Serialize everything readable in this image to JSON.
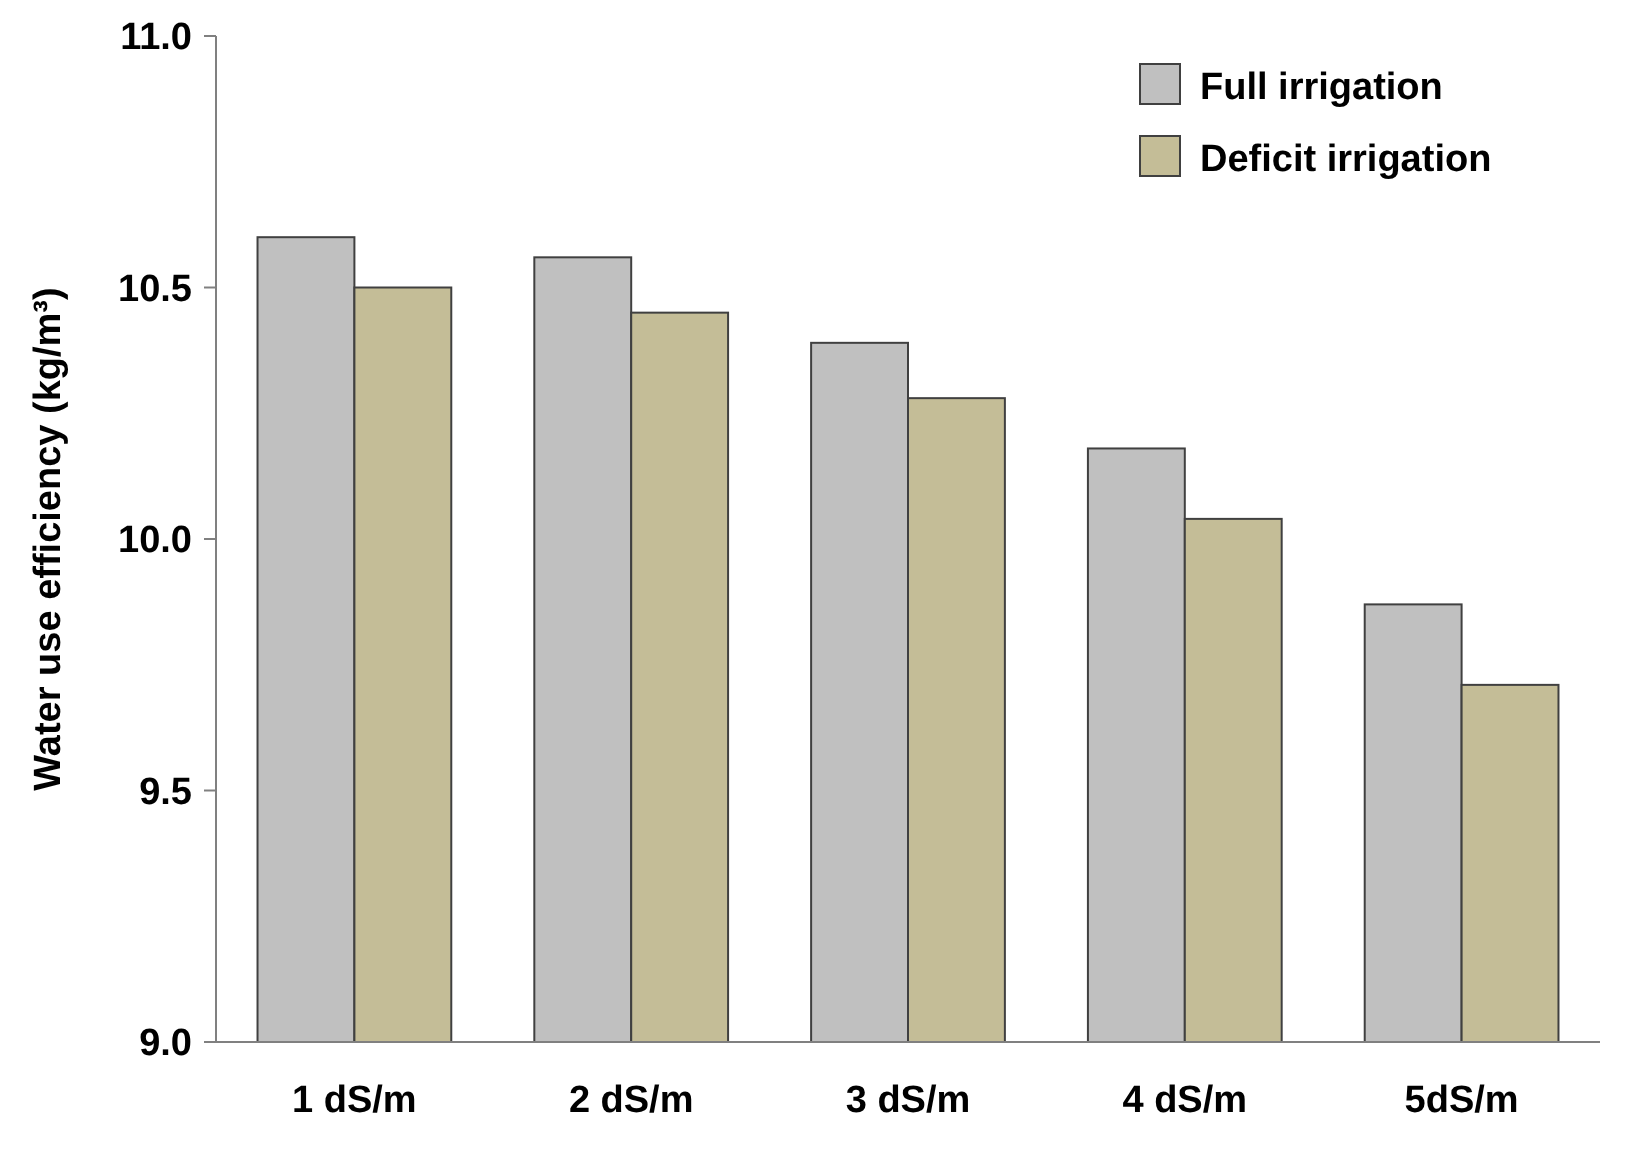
{
  "chart_data": {
    "type": "bar",
    "ylabel": "Water use efficiency (kg/m³)",
    "categories": [
      "1 dS/m",
      "2 dS/m",
      "3 dS/m",
      "4 dS/m",
      "5dS/m"
    ],
    "series": [
      {
        "name": "Full irrigation",
        "color": "#c0c0c0",
        "values": [
          10.6,
          10.56,
          10.39,
          10.18,
          9.87
        ]
      },
      {
        "name": "Deficit irrigation",
        "color": "#c4bd97",
        "values": [
          10.5,
          10.45,
          10.28,
          10.04,
          9.71
        ]
      }
    ],
    "ylim": [
      9.0,
      11.0
    ],
    "yticks": [
      {
        "value": 9,
        "label": "9.0"
      },
      {
        "value": 9.5,
        "label": "9.5"
      },
      {
        "value": 10,
        "label": "10.0"
      },
      {
        "value": 10.5,
        "label": "10.5"
      },
      {
        "value": 11,
        "label": "11.0"
      }
    ],
    "grid": false,
    "legend": "top right"
  }
}
